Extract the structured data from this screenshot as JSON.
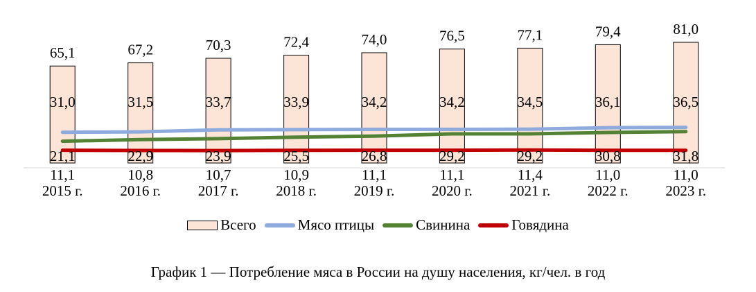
{
  "chart_data": {
    "type": "bar",
    "categories": [
      "2015 г.",
      "2016 г.",
      "2017 г.",
      "2018 г.",
      "2019 г.",
      "2020 г.",
      "2021 г.",
      "2022 г.",
      "2023 г."
    ],
    "series": [
      {
        "name": "Всего",
        "kind": "bar",
        "color": "#FCE4D6",
        "values": [
          65.1,
          67.2,
          70.3,
          72.4,
          74.0,
          76.5,
          77.1,
          79.4,
          81.0
        ],
        "labels": [
          "65,1",
          "67,2",
          "70,3",
          "72,4",
          "74,0",
          "76,5",
          "77,1",
          "79,4",
          "81,0"
        ]
      },
      {
        "name": "Мясо птицы",
        "kind": "line",
        "color": "#8FAADC",
        "values": [
          31.0,
          31.5,
          33.7,
          33.9,
          34.2,
          34.2,
          34.5,
          36.1,
          36.5
        ],
        "labels": [
          "31,0",
          "31,5",
          "33,7",
          "33,9",
          "34,2",
          "34,2",
          "34,5",
          "36,1",
          "36,5"
        ]
      },
      {
        "name": "Свинина",
        "kind": "line",
        "color": "#548235",
        "values": [
          21.1,
          22.9,
          23.9,
          25.5,
          26.8,
          29.2,
          29.2,
          30.8,
          31.8
        ],
        "labels": [
          "21,1",
          "22,9",
          "23,9",
          "25,5",
          "26,8",
          "29,2",
          "29,2",
          "30,8",
          "31,8"
        ]
      },
      {
        "name": "Говядина",
        "kind": "line",
        "color": "#C00000",
        "values": [
          11.1,
          10.8,
          10.7,
          10.9,
          11.1,
          11.1,
          11.4,
          11.0,
          11.0
        ],
        "labels": [
          "11,1",
          "10,8",
          "10,7",
          "10,9",
          "11,1",
          "11,1",
          "11,4",
          "11,0",
          "11,0"
        ]
      }
    ],
    "legend_position": "bottom",
    "grid": false
  },
  "caption": "График 1 — Потребление мяса в России на душу населения, кг/чел. в год"
}
